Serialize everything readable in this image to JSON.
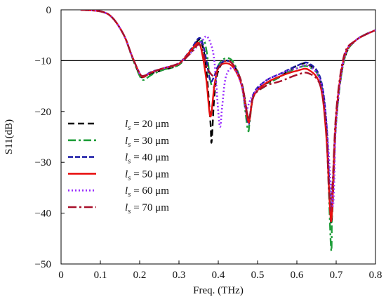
{
  "chart_data": {
    "type": "line",
    "xlabel": "Freq. (THz)",
    "ylabel": "S11(dB)",
    "xlim": [
      0,
      0.8
    ],
    "ylim": [
      -50,
      0
    ],
    "x_ticks": [
      0,
      0.1,
      0.2,
      0.3,
      0.4,
      0.5,
      0.6,
      0.7,
      0.8
    ],
    "x_tick_labels": [
      "0",
      "0.1",
      "0.2",
      "0.3",
      "0.4",
      "0.5",
      "0.6",
      "0.7",
      "0.8"
    ],
    "y_ticks": [
      0,
      -10,
      -20,
      -30,
      -40,
      -50
    ],
    "y_tick_labels": [
      "0",
      "−10",
      "−20",
      "−30",
      "−40",
      "−50"
    ],
    "reference_line": {
      "y": -10,
      "color": "#000000"
    },
    "legend_placement": "left",
    "series": [
      {
        "name": "l_s = 20 μm",
        "legend_label": "20 μm",
        "color": "#000000",
        "dash": "dash",
        "points": [
          [
            0.05,
            0.0
          ],
          [
            0.1,
            -0.3
          ],
          [
            0.13,
            -1.5
          ],
          [
            0.16,
            -5.0
          ],
          [
            0.18,
            -9.0
          ],
          [
            0.2,
            -12.8
          ],
          [
            0.21,
            -13.2
          ],
          [
            0.23,
            -12.5
          ],
          [
            0.26,
            -11.8
          ],
          [
            0.3,
            -10.8
          ],
          [
            0.33,
            -8.2
          ],
          [
            0.35,
            -5.9
          ],
          [
            0.36,
            -7.0
          ],
          [
            0.37,
            -12.0
          ],
          [
            0.38,
            -22.0
          ],
          [
            0.383,
            -26.0
          ],
          [
            0.39,
            -17.0
          ],
          [
            0.4,
            -12.0
          ],
          [
            0.42,
            -10.0
          ],
          [
            0.44,
            -11.0
          ],
          [
            0.46,
            -14.5
          ],
          [
            0.475,
            -21.0
          ],
          [
            0.48,
            -21.0
          ],
          [
            0.49,
            -17.0
          ],
          [
            0.51,
            -15.0
          ],
          [
            0.55,
            -13.5
          ],
          [
            0.6,
            -11.0
          ],
          [
            0.63,
            -10.8
          ],
          [
            0.66,
            -14.0
          ],
          [
            0.675,
            -23.0
          ],
          [
            0.685,
            -40.0
          ],
          [
            0.69,
            -40.0
          ],
          [
            0.7,
            -22.0
          ],
          [
            0.72,
            -10.0
          ],
          [
            0.75,
            -6.0
          ],
          [
            0.8,
            -4.0
          ]
        ]
      },
      {
        "name": "l_s = 30 μm",
        "legend_label": "30 μm",
        "color": "#1f9e3a",
        "dash": "dashdot",
        "points": [
          [
            0.05,
            0.0
          ],
          [
            0.1,
            -0.3
          ],
          [
            0.13,
            -1.5
          ],
          [
            0.16,
            -5.0
          ],
          [
            0.18,
            -9.2
          ],
          [
            0.2,
            -13.0
          ],
          [
            0.21,
            -13.8
          ],
          [
            0.23,
            -12.8
          ],
          [
            0.26,
            -11.8
          ],
          [
            0.3,
            -10.8
          ],
          [
            0.33,
            -8.2
          ],
          [
            0.36,
            -6.0
          ],
          [
            0.37,
            -8.0
          ],
          [
            0.38,
            -14.0
          ],
          [
            0.39,
            -15.0
          ],
          [
            0.4,
            -11.0
          ],
          [
            0.42,
            -9.5
          ],
          [
            0.44,
            -10.5
          ],
          [
            0.46,
            -15.0
          ],
          [
            0.475,
            -23.5
          ],
          [
            0.48,
            -22.0
          ],
          [
            0.49,
            -17.0
          ],
          [
            0.52,
            -15.0
          ],
          [
            0.56,
            -13.0
          ],
          [
            0.6,
            -11.5
          ],
          [
            0.63,
            -11.2
          ],
          [
            0.66,
            -14.0
          ],
          [
            0.675,
            -24.0
          ],
          [
            0.687,
            -47.0
          ],
          [
            0.69,
            -38.0
          ],
          [
            0.7,
            -22.0
          ],
          [
            0.72,
            -10.0
          ],
          [
            0.75,
            -6.0
          ],
          [
            0.8,
            -4.0
          ]
        ]
      },
      {
        "name": "l_s = 40 μm",
        "legend_label": "40 μm",
        "color": "#1f1fa8",
        "dash": "dashlong",
        "points": [
          [
            0.05,
            0.0
          ],
          [
            0.1,
            -0.3
          ],
          [
            0.13,
            -1.5
          ],
          [
            0.16,
            -5.0
          ],
          [
            0.18,
            -9.0
          ],
          [
            0.2,
            -12.5
          ],
          [
            0.21,
            -13.0
          ],
          [
            0.23,
            -12.2
          ],
          [
            0.26,
            -11.5
          ],
          [
            0.3,
            -10.5
          ],
          [
            0.33,
            -7.8
          ],
          [
            0.35,
            -5.6
          ],
          [
            0.36,
            -6.5
          ],
          [
            0.37,
            -10.0
          ],
          [
            0.38,
            -14.0
          ],
          [
            0.39,
            -13.0
          ],
          [
            0.4,
            -11.0
          ],
          [
            0.42,
            -10.0
          ],
          [
            0.44,
            -11.0
          ],
          [
            0.46,
            -15.0
          ],
          [
            0.475,
            -22.0
          ],
          [
            0.48,
            -21.5
          ],
          [
            0.49,
            -16.5
          ],
          [
            0.52,
            -14.0
          ],
          [
            0.56,
            -12.5
          ],
          [
            0.6,
            -11.0
          ],
          [
            0.63,
            -10.5
          ],
          [
            0.66,
            -13.5
          ],
          [
            0.675,
            -22.0
          ],
          [
            0.685,
            -38.0
          ],
          [
            0.69,
            -37.0
          ],
          [
            0.7,
            -21.0
          ],
          [
            0.72,
            -9.5
          ],
          [
            0.75,
            -6.0
          ],
          [
            0.8,
            -4.0
          ]
        ]
      },
      {
        "name": "l_s = 50 μm",
        "legend_label": "50 μm",
        "color": "#e81010",
        "dash": "solid",
        "points": [
          [
            0.05,
            0.0
          ],
          [
            0.1,
            -0.3
          ],
          [
            0.13,
            -1.5
          ],
          [
            0.16,
            -5.0
          ],
          [
            0.18,
            -9.0
          ],
          [
            0.2,
            -12.5
          ],
          [
            0.21,
            -13.2
          ],
          [
            0.23,
            -12.3
          ],
          [
            0.26,
            -11.5
          ],
          [
            0.3,
            -10.6
          ],
          [
            0.33,
            -8.0
          ],
          [
            0.35,
            -6.5
          ],
          [
            0.36,
            -9.0
          ],
          [
            0.37,
            -14.0
          ],
          [
            0.38,
            -21.0
          ],
          [
            0.39,
            -15.0
          ],
          [
            0.4,
            -11.5
          ],
          [
            0.42,
            -10.5
          ],
          [
            0.44,
            -11.5
          ],
          [
            0.46,
            -15.0
          ],
          [
            0.475,
            -21.5
          ],
          [
            0.48,
            -21.5
          ],
          [
            0.49,
            -17.0
          ],
          [
            0.52,
            -14.5
          ],
          [
            0.56,
            -13.0
          ],
          [
            0.6,
            -12.0
          ],
          [
            0.63,
            -11.8
          ],
          [
            0.66,
            -15.0
          ],
          [
            0.675,
            -25.0
          ],
          [
            0.685,
            -40.0
          ],
          [
            0.69,
            -39.0
          ],
          [
            0.7,
            -21.0
          ],
          [
            0.72,
            -9.5
          ],
          [
            0.75,
            -6.0
          ],
          [
            0.8,
            -4.0
          ]
        ]
      },
      {
        "name": "l_s = 60 μm",
        "legend_label": "60 μm",
        "color": "#9b30ff",
        "dash": "dot",
        "points": [
          [
            0.05,
            0.0
          ],
          [
            0.1,
            -0.3
          ],
          [
            0.13,
            -1.5
          ],
          [
            0.16,
            -5.0
          ],
          [
            0.18,
            -9.0
          ],
          [
            0.2,
            -12.5
          ],
          [
            0.21,
            -13.0
          ],
          [
            0.23,
            -12.3
          ],
          [
            0.26,
            -11.5
          ],
          [
            0.3,
            -10.5
          ],
          [
            0.33,
            -8.5
          ],
          [
            0.36,
            -6.0
          ],
          [
            0.37,
            -5.2
          ],
          [
            0.38,
            -6.5
          ],
          [
            0.39,
            -10.0
          ],
          [
            0.4,
            -20.0
          ],
          [
            0.405,
            -23.0
          ],
          [
            0.41,
            -19.0
          ],
          [
            0.42,
            -13.0
          ],
          [
            0.44,
            -11.5
          ],
          [
            0.46,
            -15.0
          ],
          [
            0.47,
            -19.5
          ],
          [
            0.48,
            -18.0
          ],
          [
            0.49,
            -16.5
          ],
          [
            0.52,
            -14.0
          ],
          [
            0.56,
            -12.5
          ],
          [
            0.6,
            -11.5
          ],
          [
            0.63,
            -11.0
          ],
          [
            0.66,
            -14.0
          ],
          [
            0.675,
            -22.0
          ],
          [
            0.69,
            -38.0
          ],
          [
            0.695,
            -34.0
          ],
          [
            0.7,
            -22.0
          ],
          [
            0.72,
            -9.5
          ],
          [
            0.75,
            -6.0
          ],
          [
            0.8,
            -4.0
          ]
        ]
      },
      {
        "name": "l_s = 70 μm",
        "legend_label": "70 μm",
        "color": "#a8102a",
        "dash": "dashdotlong",
        "points": [
          [
            0.05,
            0.0
          ],
          [
            0.1,
            -0.3
          ],
          [
            0.13,
            -1.5
          ],
          [
            0.16,
            -5.0
          ],
          [
            0.18,
            -9.0
          ],
          [
            0.2,
            -12.5
          ],
          [
            0.21,
            -13.0
          ],
          [
            0.23,
            -12.3
          ],
          [
            0.26,
            -11.5
          ],
          [
            0.3,
            -10.5
          ],
          [
            0.33,
            -8.5
          ],
          [
            0.35,
            -6.8
          ],
          [
            0.36,
            -8.0
          ],
          [
            0.37,
            -11.0
          ],
          [
            0.38,
            -12.5
          ],
          [
            0.39,
            -13.0
          ],
          [
            0.4,
            -11.5
          ],
          [
            0.42,
            -10.0
          ],
          [
            0.44,
            -11.0
          ],
          [
            0.46,
            -14.5
          ],
          [
            0.475,
            -21.0
          ],
          [
            0.48,
            -21.0
          ],
          [
            0.49,
            -17.0
          ],
          [
            0.52,
            -15.0
          ],
          [
            0.56,
            -14.0
          ],
          [
            0.6,
            -12.8
          ],
          [
            0.63,
            -12.5
          ],
          [
            0.66,
            -15.0
          ],
          [
            0.675,
            -24.0
          ],
          [
            0.682,
            -36.0
          ],
          [
            0.69,
            -35.0
          ],
          [
            0.7,
            -20.0
          ],
          [
            0.72,
            -9.0
          ],
          [
            0.75,
            -6.0
          ],
          [
            0.8,
            -4.0
          ]
        ]
      }
    ]
  }
}
